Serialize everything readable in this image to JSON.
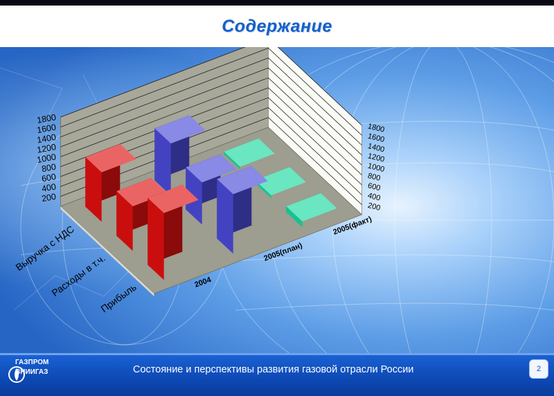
{
  "slide": {
    "title": "Содержание",
    "footer_text": "Состояние и перспективы развития газовой отрасли России",
    "page_number": "2",
    "logo_line1": "ГАЗПРОМ",
    "logo_line2": "ВНИИГАЗ"
  },
  "colors": {
    "title": "#1560c8",
    "footer_bg": "#0d49b4",
    "series_2004": "#e01010",
    "series_2005_plan": "#4a4ad8",
    "series_2005_fact": "#19d8a0",
    "back_wall": "#fbfbf6",
    "side_wall": "#a7a79a",
    "floor": "#9d9d90"
  },
  "chart_data": {
    "type": "bar",
    "style": "3d-clustered-depth",
    "categories": [
      "Выручка с НДС",
      "Расходы в т.ч.",
      "Прибыль"
    ],
    "series": [
      {
        "name": "2004",
        "values": [
          1000,
          900,
          1350
        ]
      },
      {
        "name": "2005(план)",
        "values": [
          1050,
          850,
          1200
        ]
      },
      {
        "name": "2005(факт)",
        "values": [
          50,
          60,
          120
        ]
      }
    ],
    "z_tick_labels": [
      "200",
      "400",
      "600",
      "800",
      "1000",
      "1200",
      "1400",
      "1600",
      "1800"
    ],
    "ylim": [
      0,
      1800
    ],
    "grid": true,
    "legend": "none"
  }
}
